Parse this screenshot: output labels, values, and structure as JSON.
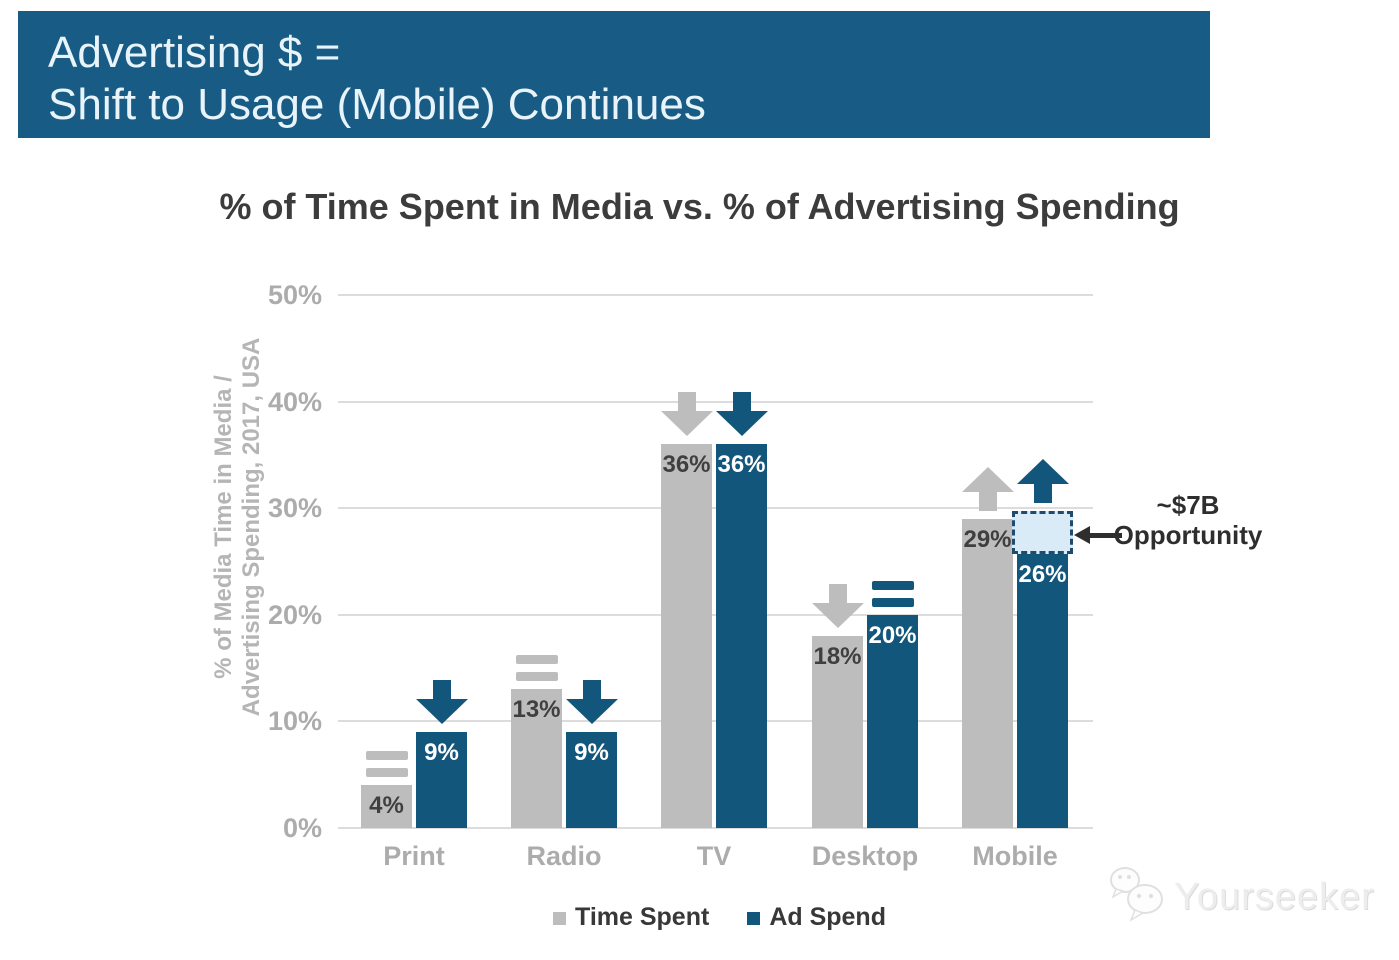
{
  "header": {
    "line1": "Advertising $ =",
    "line2": "Shift to Usage (Mobile) Continues",
    "bg_color": "#185C85",
    "text_color": "#E8F3FA"
  },
  "chart_data": {
    "type": "bar",
    "title": "% of Time Spent in Media vs. % of Advertising Spending",
    "categories": [
      "Print",
      "Radio",
      "TV",
      "Desktop",
      "Mobile"
    ],
    "series": [
      {
        "name": "Time Spent",
        "color": "#BDBDBD",
        "values": [
          4,
          13,
          36,
          18,
          29
        ],
        "value_labels": [
          "4%",
          "13%",
          "36%",
          "18%",
          "29%"
        ],
        "trends": [
          "flat",
          "flat",
          "down",
          "down",
          "up"
        ]
      },
      {
        "name": "Ad Spend",
        "color": "#13567C",
        "values": [
          9,
          9,
          36,
          20,
          26
        ],
        "value_labels": [
          "9%",
          "9%",
          "36%",
          "20%",
          "26%"
        ],
        "trends": [
          "down",
          "down",
          "down",
          "flat",
          "up"
        ]
      }
    ],
    "ylabel_line1": "% of Media Time in Media /",
    "ylabel_line2": "Advertising Spending, 2017, USA",
    "y_ticks": [
      {
        "label": "0%",
        "value": 0
      },
      {
        "label": "10%",
        "value": 10
      },
      {
        "label": "20%",
        "value": 20
      },
      {
        "label": "30%",
        "value": 30
      },
      {
        "label": "40%",
        "value": 40
      },
      {
        "label": "50%",
        "value": 50
      }
    ],
    "ylim": [
      0,
      50
    ],
    "grid": true,
    "legend_position": "bottom",
    "annotation": {
      "line1": "~$7B",
      "line2": "Opportunity"
    }
  },
  "legend": {
    "items": [
      {
        "label": "Time Spent",
        "color": "#BDBDBD"
      },
      {
        "label": "Ad Spend",
        "color": "#13567C"
      }
    ]
  },
  "watermark": {
    "text": "Yourseeker"
  }
}
